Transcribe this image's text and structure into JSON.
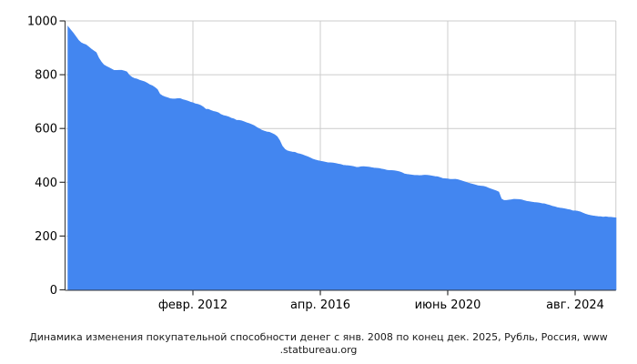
{
  "chart_data": {
    "type": "area",
    "title_line1": "Динамика изменения покупательной способности денег с янв. 2008 по конец дек. 2025, Рубль, Россия, www",
    "title_line2": ".statbureau.org",
    "series_name": "Покупательная способность денег, Рубль, Россия",
    "x_unit": "month",
    "x_range_label": "янв. 2008 — дек. 2025",
    "x_tick_labels": [
      "февр. 2012",
      "апр. 2016",
      "июнь 2020",
      "авг. 2024"
    ],
    "x_tick_month_indices": [
      49,
      99,
      149,
      199
    ],
    "y_tick_labels": [
      "0",
      "200",
      "400",
      "600",
      "800",
      "1000"
    ],
    "y_ticks": [
      0,
      200,
      400,
      600,
      800,
      1000
    ],
    "ylim": [
      0,
      1000
    ],
    "xlabel": "",
    "ylabel": "",
    "grid": true,
    "legend_position": "none",
    "colors": {
      "area_fill": "#4386f0",
      "gridline": "#cccccc",
      "axis_line": "#333333",
      "tick_mark": "#333333",
      "label_text": "#000000"
    },
    "values": [
      977.5,
      965.9,
      954.5,
      941.3,
      928.3,
      919.1,
      914.5,
      910.9,
      903.7,
      895.6,
      888.5,
      882.3,
      861.6,
      847.2,
      836.3,
      830.5,
      825.6,
      820.6,
      815.7,
      815.7,
      816.0,
      816.0,
      813.5,
      810.3,
      797.5,
      790.4,
      785.7,
      783.4,
      779.5,
      776.4,
      773.3,
      768.6,
      762.5,
      758.7,
      752.7,
      744.5,
      727.1,
      721.3,
      717.0,
      714.1,
      710.6,
      709.2,
      709.2,
      710.6,
      710.6,
      707.0,
      704.2,
      701.4,
      697.9,
      695.1,
      691.0,
      688.9,
      685.5,
      679.4,
      671.3,
      670.6,
      666.6,
      663.3,
      661.3,
      658.0,
      651.5,
      647.6,
      645.7,
      642.5,
      638.0,
      635.4,
      630.4,
      629.8,
      628.5,
      624.8,
      621.1,
      618.0,
      614.3,
      610.0,
      604.0,
      598.6,
      593.3,
      589.7,
      586.8,
      585.6,
      581.5,
      576.9,
      569.5,
      555.1,
      534.2,
      522.7,
      516.5,
      513.9,
      511.9,
      510.9,
      506.8,
      504.8,
      501.8,
      498.3,
      494.3,
      490.4,
      485.5,
      482.6,
      480.2,
      478.3,
      476.4,
      474.5,
      472.2,
      472.2,
      471.2,
      469.3,
      467.5,
      465.6,
      462.8,
      461.9,
      461.4,
      460.0,
      458.2,
      455.5,
      455.0,
      457.3,
      457.8,
      456.9,
      456.0,
      454.2,
      452.8,
      451.9,
      450.6,
      448.8,
      447.0,
      444.8,
      443.4,
      443.4,
      442.6,
      440.8,
      438.6,
      435.1,
      430.8,
      429.1,
      427.8,
      426.5,
      425.2,
      425.2,
      424.4,
      425.2,
      426.1,
      425.6,
      424.4,
      422.7,
      421.0,
      419.8,
      417.3,
      414.0,
      412.7,
      411.9,
      410.3,
      410.3,
      410.7,
      409.0,
      406.2,
      403.0,
      400.2,
      397.0,
      394.2,
      391.9,
      389.2,
      386.5,
      385.3,
      384.5,
      382.2,
      378.1,
      374.3,
      371.4,
      367.7,
      363.3,
      337.7,
      332.4,
      332.0,
      333.4,
      334.7,
      336.4,
      336.0,
      335.4,
      334.0,
      331.4,
      328.7,
      327.1,
      325.8,
      324.5,
      323.5,
      322.2,
      320.3,
      319.4,
      316.5,
      314.0,
      310.6,
      308.4,
      305.7,
      303.6,
      302.4,
      300.9,
      298.8,
      297.0,
      293.8,
      293.2,
      291.7,
      289.4,
      285.4,
      281.7,
      278.4,
      276.2,
      274.3,
      273.2,
      272.1,
      271.5,
      269.9,
      271.0,
      270.2,
      269.3,
      268.4,
      267.5
    ]
  }
}
